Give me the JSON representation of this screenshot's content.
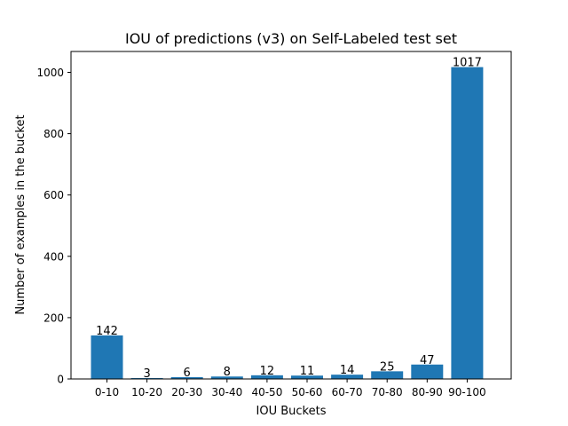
{
  "chart_data": {
    "type": "bar",
    "title": "IOU of predictions (v3) on Self-Labeled test set",
    "xlabel": "IOU Buckets",
    "ylabel": "Number of examples in the bucket",
    "categories": [
      "0-10",
      "10-20",
      "20-30",
      "30-40",
      "40-50",
      "50-60",
      "60-70",
      "70-80",
      "80-90",
      "90-100"
    ],
    "values": [
      142,
      3,
      6,
      8,
      12,
      11,
      14,
      25,
      47,
      1017
    ],
    "data_labels": [
      "142",
      "3",
      "6",
      "8",
      "12",
      "11",
      "14",
      "25",
      "47",
      "1017"
    ],
    "ylim": [
      0,
      1068
    ],
    "yticks": [
      0,
      200,
      400,
      600,
      800,
      1000
    ],
    "grid": false,
    "bar_color": "#1f77b4"
  }
}
